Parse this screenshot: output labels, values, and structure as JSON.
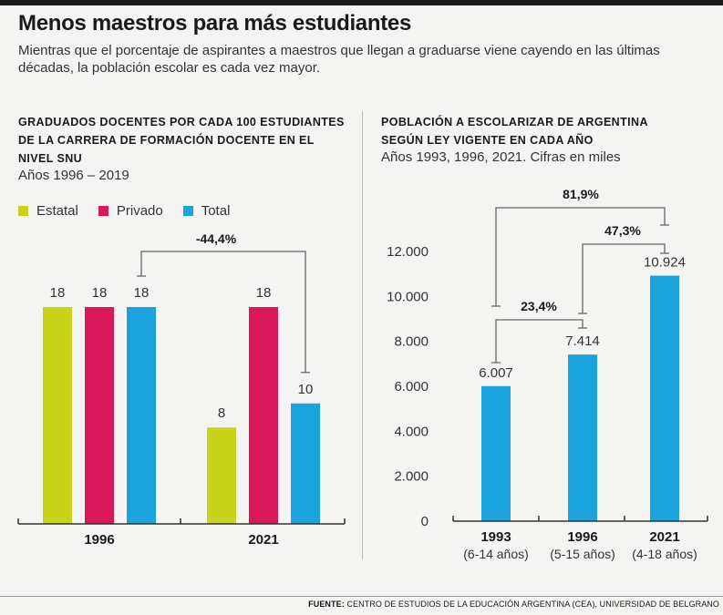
{
  "header": {
    "title": "Menos maestros para más estudiantes",
    "subtitle": "Mientras que el porcentaje de aspirantes a maestros que llegan a graduarse viene cayendo en las últimas décadas, la población escolar es cada vez mayor."
  },
  "left_panel": {
    "title_line1": "GRADUADOS DOCENTES POR CADA 100 ESTUDIANTES",
    "title_line2": "DE LA CARRERA DE FORMACIÓN DOCENTE EN EL",
    "title_line3": "NIVEL SNU",
    "subtitle": "Años 1996 – 2019",
    "legend": [
      {
        "label": "Estatal",
        "color": "#c8d41a"
      },
      {
        "label": "Privado",
        "color": "#d8185a"
      },
      {
        "label": "Total",
        "color": "#1aa3dd"
      }
    ]
  },
  "right_panel": {
    "title_line1": "POBLACIÓN A ESCOLARIZAR DE ARGENTINA",
    "title_line2": "SEGÚN LEY VIGENTE EN CADA AÑO",
    "subtitle": "Años 1993, 1996, 2021. Cifras en miles"
  },
  "chart_data": [
    {
      "type": "bar",
      "categories": [
        "1996",
        "2021"
      ],
      "series": [
        {
          "name": "Estatal",
          "values": [
            18,
            8
          ],
          "color": "#c8d41a"
        },
        {
          "name": "Privado",
          "values": [
            18,
            18
          ],
          "color": "#d8185a"
        },
        {
          "name": "Total",
          "values": [
            18,
            10
          ],
          "color": "#1aa3dd"
        }
      ],
      "ylim": [
        0,
        20
      ],
      "annotations": [
        {
          "label": "-44,4%",
          "from": "1996 Total",
          "to": "2021 Total"
        }
      ]
    },
    {
      "type": "bar",
      "categories": [
        "1993",
        "1996",
        "2021"
      ],
      "category_sublabels": [
        "(6-14 años)",
        "(5-15 años)",
        "(4-18 años)"
      ],
      "values": [
        6007,
        7414,
        10924
      ],
      "value_labels": [
        "6.007",
        "7.414",
        "10.924"
      ],
      "color": "#1aa3dd",
      "yticks": [
        0,
        2000,
        4000,
        6000,
        8000,
        10000,
        12000
      ],
      "ytick_labels": [
        "0",
        "2.000",
        "4.000",
        "6.000",
        "8.000",
        "10.000",
        "12.000"
      ],
      "ylim": [
        0,
        12000
      ],
      "annotations": [
        {
          "label": "81,9%",
          "from": "1993",
          "to": "2021"
        },
        {
          "label": "47,3%",
          "from": "1996",
          "to": "2021"
        },
        {
          "label": "23,4%",
          "from": "1993",
          "to": "1996"
        }
      ]
    }
  ],
  "footer": {
    "label": "FUENTE:",
    "text": " CENTRO DE ESTUDIOS DE LA EDUCACIÓN ARGENTINA (CEA), UNIVERSIDAD DE BELGRANO"
  }
}
